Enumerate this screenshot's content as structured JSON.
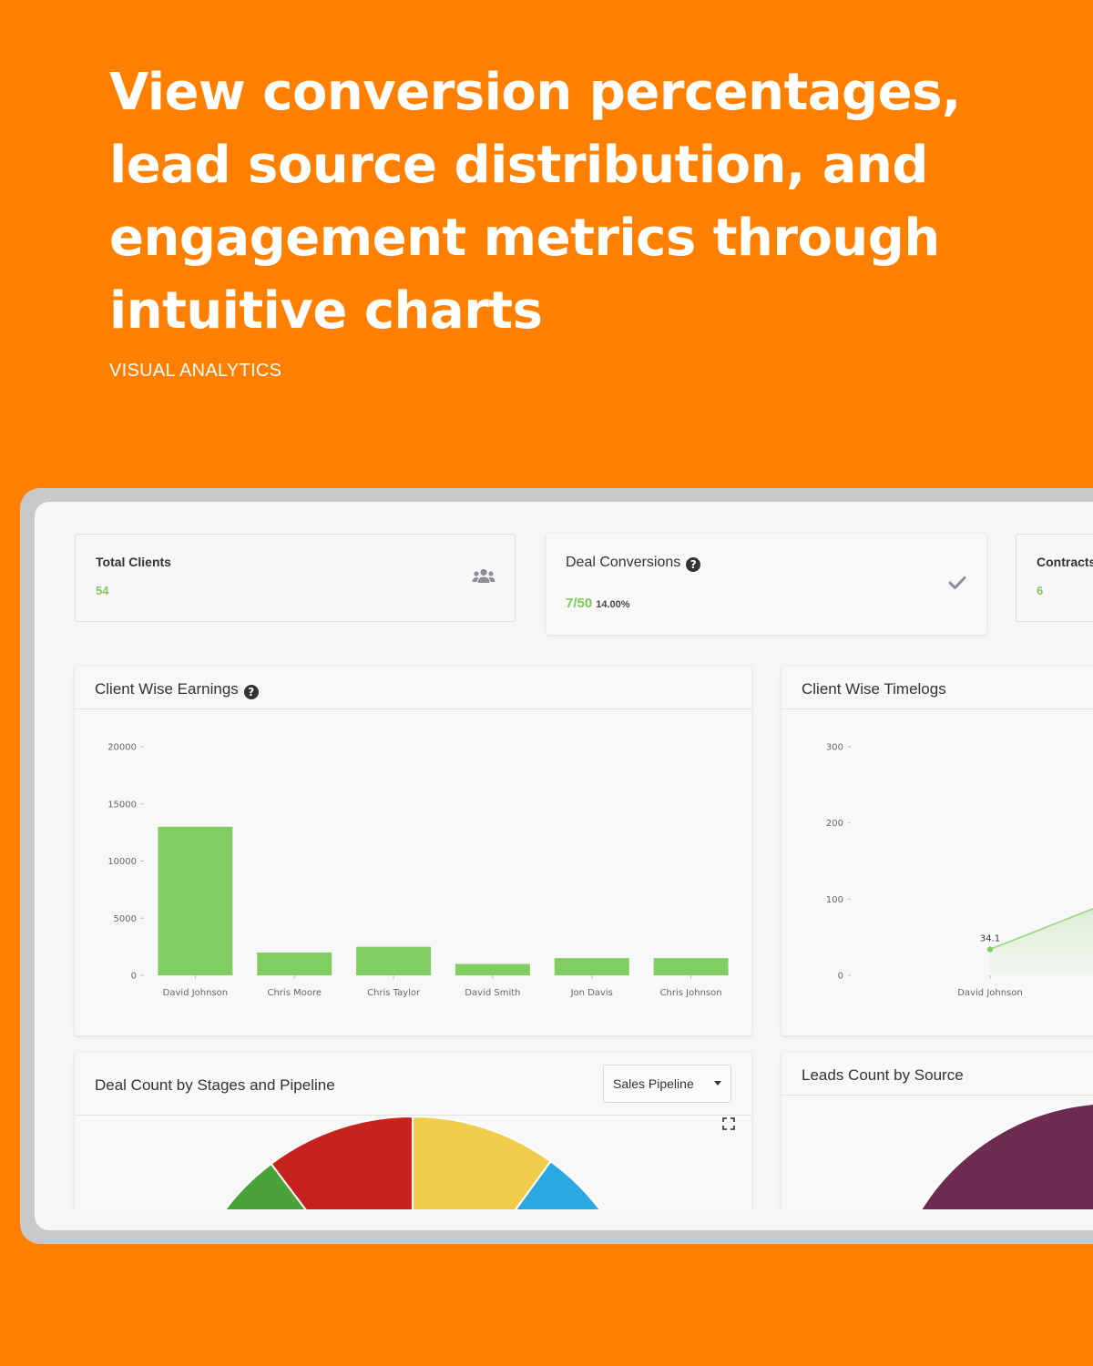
{
  "hero": {
    "title": "View conversion percentages, lead source distribution, and engagement metrics through intuitive charts",
    "eyebrow": "VISUAL ANALYTICS"
  },
  "stats": {
    "total_clients": {
      "label": "Total Clients",
      "value": "54",
      "icon": "users-icon"
    },
    "deal_conversions": {
      "label": "Deal Conversions",
      "value": "7/50",
      "percent": "14.00%",
      "icon": "check-icon"
    },
    "contracts": {
      "label": "Contracts",
      "value": "6"
    }
  },
  "earnings": {
    "title": "Client Wise Earnings",
    "chart_data": {
      "type": "bar",
      "categories": [
        "David Johnson",
        "Chris Moore",
        "Chris Taylor",
        "David Smith",
        "Jon Davis",
        "Chris Johnson"
      ],
      "values": [
        13000,
        2000,
        2500,
        1000,
        1500,
        1500
      ],
      "ylim": [
        0,
        20000
      ],
      "yticks": [
        "20000",
        "15000",
        "10000",
        "5000",
        "0"
      ],
      "color": "#82CD62"
    }
  },
  "timelogs": {
    "title": "Client Wise Timelogs",
    "chart_data": {
      "type": "line",
      "categories": [
        "David Johnson"
      ],
      "values": [
        34.1
      ],
      "point_label": "34.1",
      "ylim": [
        0,
        300
      ],
      "yticks": [
        "300",
        "200",
        "100",
        "0"
      ],
      "color": "#82CD62"
    }
  },
  "deals": {
    "title": "Deal Count by Stages and Pipeline",
    "select": {
      "value": "Sales Pipeline"
    },
    "chart_data": {
      "type": "pie",
      "colors": [
        "#4AA23A",
        "#C8221C",
        "#EFCC4B",
        "#29A9E0"
      ]
    }
  },
  "leads": {
    "title": "Leads Count by Source",
    "chart_data": {
      "type": "pie",
      "colors": [
        "#E048C8",
        "#6E2A50"
      ]
    }
  }
}
